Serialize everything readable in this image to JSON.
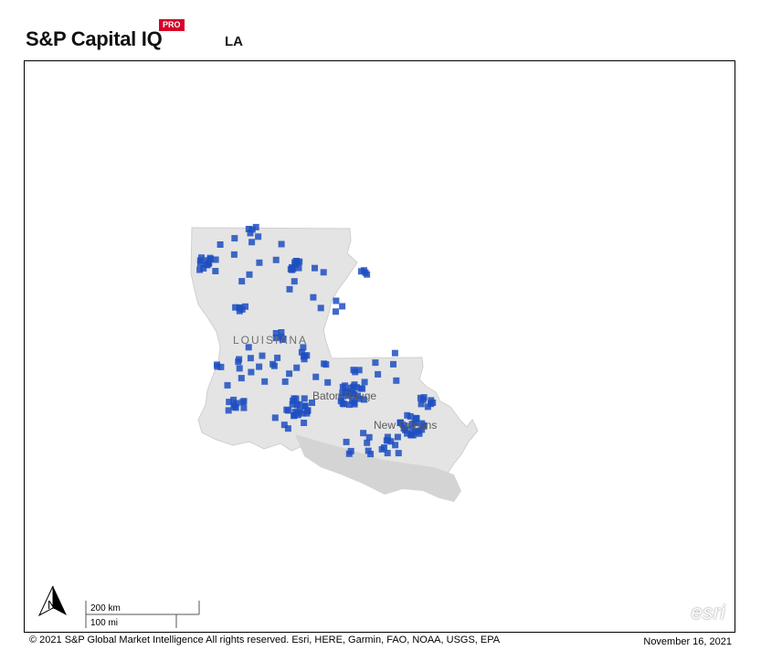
{
  "header": {
    "brand": "S&P Capital IQ",
    "badge": "PRO",
    "region": "LA"
  },
  "map": {
    "labels": {
      "state": "LOUISIANA",
      "city_1": "Baton Rouge",
      "city_2": "New Orleans"
    },
    "north_label": "N",
    "scale_km": "200 km",
    "scale_mi": "100 mi",
    "attribution_logo": "esri",
    "colors": {
      "land": "#e4e4e4",
      "coast": "#d2d2d2",
      "marker": "#1f4fc1"
    }
  },
  "footer": {
    "copyright": "© 2021 S&P Global Market Intelligence All rights reserved. Esri, HERE, Garmin, FAO, NOAA, USGS, EPA",
    "date": "November 16, 2021"
  }
}
